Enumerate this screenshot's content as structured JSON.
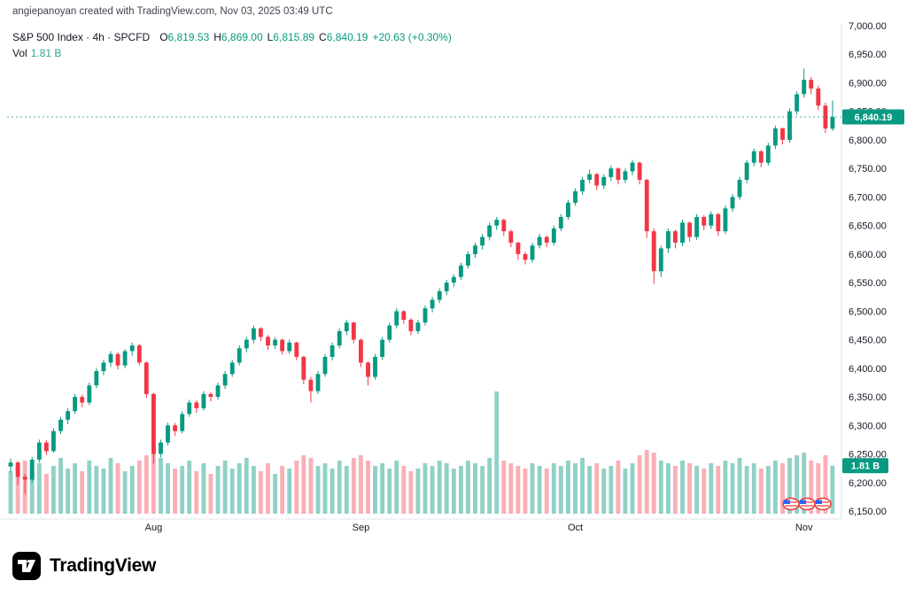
{
  "attribution": "angiepanoyan created with TradingView.com, Nov 03, 2025 03:49 UTC",
  "legend": {
    "title": "S&P 500 Index · 4h · SPCFD",
    "ohlc": [
      {
        "k": "O",
        "v": "6,819.53"
      },
      {
        "k": "H",
        "v": "6,869.00"
      },
      {
        "k": "L",
        "v": "6,815.89"
      },
      {
        "k": "C",
        "v": "6,840.19"
      }
    ],
    "change": "+20.63 (+0.30%)",
    "vol_label": "Vol",
    "vol_value": "1.81 B"
  },
  "colors": {
    "up": "#089981",
    "down": "#f23645",
    "vol_up": "rgba(8,153,129,0.45)",
    "vol_down": "rgba(242,54,69,0.40)",
    "axis_line": "#e0e3eb",
    "label": "#131722"
  },
  "footer": {
    "brand": "TradingView"
  },
  "chart_data": {
    "type": "candlestick",
    "title": "S&P 500 Index",
    "symbol": "SPCFD",
    "interval": "4h",
    "ylabel": "Price",
    "ylim": [
      6150,
      7000
    ],
    "grid": false,
    "legend_position": "top-left",
    "y_ticks": [
      {
        "v": 7000,
        "label": "7,000.00"
      },
      {
        "v": 6950,
        "label": "6,950.00"
      },
      {
        "v": 6900,
        "label": "6,900.00"
      },
      {
        "v": 6850,
        "label": "6,850.00"
      },
      {
        "v": 6800,
        "label": "6,800.00"
      },
      {
        "v": 6750,
        "label": "6,750.00"
      },
      {
        "v": 6700,
        "label": "6,700.00"
      },
      {
        "v": 6650,
        "label": "6,650.00"
      },
      {
        "v": 6600,
        "label": "6,600.00"
      },
      {
        "v": 6550,
        "label": "6,550.00"
      },
      {
        "v": 6500,
        "label": "6,500.00"
      },
      {
        "v": 6450,
        "label": "6,450.00"
      },
      {
        "v": 6400,
        "label": "6,400.00"
      },
      {
        "v": 6350,
        "label": "6,350.00"
      },
      {
        "v": 6300,
        "label": "6,300.00"
      },
      {
        "v": 6250,
        "label": "6,250.00"
      },
      {
        "v": 6200,
        "label": "6,200.00"
      },
      {
        "v": 6150,
        "label": "6,150.00"
      }
    ],
    "months": [
      {
        "label": "Aug",
        "i": 20
      },
      {
        "label": "Sep",
        "i": 49
      },
      {
        "label": "Oct",
        "i": 79
      },
      {
        "label": "Nov",
        "i": 111
      }
    ],
    "candles": [
      [
        6228,
        6242,
        6218,
        6235
      ],
      [
        6235,
        6238,
        6196,
        6210
      ],
      [
        6210,
        6215,
        6180,
        6205
      ],
      [
        6205,
        6245,
        6200,
        6240
      ],
      [
        6240,
        6275,
        6235,
        6270
      ],
      [
        6270,
        6274,
        6248,
        6255
      ],
      [
        6255,
        6295,
        6252,
        6290
      ],
      [
        6290,
        6315,
        6285,
        6310
      ],
      [
        6310,
        6330,
        6302,
        6325
      ],
      [
        6325,
        6355,
        6320,
        6350
      ],
      [
        6350,
        6354,
        6332,
        6340
      ],
      [
        6340,
        6375,
        6336,
        6370
      ],
      [
        6370,
        6400,
        6365,
        6395
      ],
      [
        6395,
        6415,
        6388,
        6410
      ],
      [
        6410,
        6430,
        6402,
        6425
      ],
      [
        6425,
        6428,
        6398,
        6405
      ],
      [
        6405,
        6434,
        6400,
        6430
      ],
      [
        6430,
        6445,
        6422,
        6440
      ],
      [
        6440,
        6443,
        6405,
        6410
      ],
      [
        6410,
        6412,
        6348,
        6355
      ],
      [
        6355,
        6357,
        6233,
        6250
      ],
      [
        6250,
        6275,
        6244,
        6270
      ],
      [
        6270,
        6305,
        6265,
        6300
      ],
      [
        6300,
        6304,
        6282,
        6290
      ],
      [
        6290,
        6325,
        6286,
        6320
      ],
      [
        6320,
        6345,
        6315,
        6340
      ],
      [
        6340,
        6344,
        6322,
        6330
      ],
      [
        6330,
        6360,
        6326,
        6355
      ],
      [
        6355,
        6358,
        6342,
        6350
      ],
      [
        6350,
        6375,
        6345,
        6370
      ],
      [
        6370,
        6395,
        6364,
        6390
      ],
      [
        6390,
        6415,
        6385,
        6410
      ],
      [
        6410,
        6440,
        6405,
        6435
      ],
      [
        6435,
        6455,
        6428,
        6450
      ],
      [
        6450,
        6475,
        6444,
        6470
      ],
      [
        6470,
        6472,
        6448,
        6455
      ],
      [
        6455,
        6458,
        6432,
        6440
      ],
      [
        6440,
        6455,
        6434,
        6450
      ],
      [
        6450,
        6452,
        6424,
        6430
      ],
      [
        6430,
        6450,
        6425,
        6445
      ],
      [
        6445,
        6447,
        6414,
        6420
      ],
      [
        6420,
        6422,
        6372,
        6380
      ],
      [
        6380,
        6385,
        6340,
        6360
      ],
      [
        6360,
        6395,
        6355,
        6390
      ],
      [
        6390,
        6425,
        6385,
        6420
      ],
      [
        6420,
        6445,
        6414,
        6440
      ],
      [
        6440,
        6470,
        6435,
        6465
      ],
      [
        6465,
        6485,
        6458,
        6480
      ],
      [
        6480,
        6482,
        6444,
        6450
      ],
      [
        6450,
        6452,
        6402,
        6410
      ],
      [
        6410,
        6412,
        6370,
        6385
      ],
      [
        6385,
        6425,
        6380,
        6420
      ],
      [
        6420,
        6455,
        6415,
        6450
      ],
      [
        6450,
        6480,
        6445,
        6475
      ],
      [
        6475,
        6505,
        6470,
        6500
      ],
      [
        6500,
        6502,
        6478,
        6485
      ],
      [
        6485,
        6488,
        6458,
        6465
      ],
      [
        6465,
        6485,
        6460,
        6480
      ],
      [
        6480,
        6510,
        6475,
        6505
      ],
      [
        6505,
        6525,
        6498,
        6520
      ],
      [
        6520,
        6540,
        6514,
        6535
      ],
      [
        6535,
        6555,
        6528,
        6550
      ],
      [
        6550,
        6565,
        6542,
        6560
      ],
      [
        6560,
        6585,
        6555,
        6580
      ],
      [
        6580,
        6605,
        6575,
        6600
      ],
      [
        6600,
        6620,
        6594,
        6615
      ],
      [
        6615,
        6635,
        6608,
        6630
      ],
      [
        6630,
        6655,
        6624,
        6650
      ],
      [
        6650,
        6665,
        6642,
        6660
      ],
      [
        6660,
        6662,
        6632,
        6640
      ],
      [
        6640,
        6643,
        6612,
        6620
      ],
      [
        6620,
        6622,
        6590,
        6600
      ],
      [
        6600,
        6604,
        6582,
        6590
      ],
      [
        6590,
        6620,
        6585,
        6615
      ],
      [
        6615,
        6635,
        6610,
        6630
      ],
      [
        6630,
        6633,
        6612,
        6620
      ],
      [
        6620,
        6650,
        6615,
        6645
      ],
      [
        6645,
        6670,
        6640,
        6665
      ],
      [
        6665,
        6695,
        6660,
        6690
      ],
      [
        6690,
        6715,
        6685,
        6710
      ],
      [
        6710,
        6735,
        6704,
        6730
      ],
      [
        6730,
        6748,
        6724,
        6740
      ],
      [
        6740,
        6742,
        6712,
        6720
      ],
      [
        6720,
        6740,
        6714,
        6735
      ],
      [
        6735,
        6755,
        6728,
        6750
      ],
      [
        6750,
        6752,
        6722,
        6730
      ],
      [
        6730,
        6750,
        6724,
        6745
      ],
      [
        6745,
        6765,
        6738,
        6760
      ],
      [
        6760,
        6762,
        6722,
        6730
      ],
      [
        6730,
        6732,
        6628,
        6640
      ],
      [
        6640,
        6645,
        6548,
        6570
      ],
      [
        6570,
        6615,
        6560,
        6610
      ],
      [
        6610,
        6645,
        6602,
        6640
      ],
      [
        6640,
        6643,
        6610,
        6620
      ],
      [
        6620,
        6660,
        6614,
        6655
      ],
      [
        6655,
        6657,
        6622,
        6630
      ],
      [
        6630,
        6670,
        6625,
        6665
      ],
      [
        6665,
        6668,
        6642,
        6650
      ],
      [
        6650,
        6675,
        6644,
        6670
      ],
      [
        6670,
        6672,
        6632,
        6640
      ],
      [
        6640,
        6685,
        6635,
        6680
      ],
      [
        6680,
        6705,
        6674,
        6700
      ],
      [
        6700,
        6735,
        6695,
        6730
      ],
      [
        6730,
        6765,
        6724,
        6760
      ],
      [
        6760,
        6785,
        6754,
        6780
      ],
      [
        6780,
        6782,
        6752,
        6760
      ],
      [
        6760,
        6795,
        6755,
        6790
      ],
      [
        6790,
        6825,
        6784,
        6820
      ],
      [
        6820,
        6822,
        6792,
        6800
      ],
      [
        6800,
        6855,
        6795,
        6850
      ],
      [
        6850,
        6885,
        6844,
        6880
      ],
      [
        6880,
        6925,
        6874,
        6905
      ],
      [
        6905,
        6910,
        6880,
        6890
      ],
      [
        6890,
        6895,
        6852,
        6860
      ],
      [
        6860,
        6865,
        6812,
        6820
      ],
      [
        6819.53,
        6869,
        6815.89,
        6840.19
      ]
    ],
    "volumes_b": [
      1.6,
      1.8,
      2.0,
      1.7,
      1.9,
      1.5,
      1.8,
      2.1,
      1.7,
      1.9,
      1.6,
      2.0,
      1.8,
      1.7,
      2.1,
      1.9,
      1.6,
      1.8,
      2.0,
      2.2,
      2.5,
      2.1,
      1.9,
      1.7,
      1.8,
      2.0,
      1.6,
      1.9,
      1.5,
      1.8,
      2.0,
      1.7,
      1.9,
      2.1,
      1.8,
      1.6,
      1.9,
      1.5,
      1.8,
      1.7,
      2.0,
      2.2,
      2.1,
      1.8,
      1.9,
      1.7,
      2.0,
      1.8,
      2.1,
      2.2,
      2.0,
      1.8,
      1.9,
      1.7,
      2.0,
      1.8,
      1.6,
      1.7,
      1.9,
      1.8,
      2.0,
      1.9,
      1.7,
      1.8,
      2.0,
      1.9,
      1.8,
      2.1,
      4.6,
      2.0,
      1.9,
      1.8,
      1.7,
      1.9,
      1.8,
      1.7,
      1.9,
      1.8,
      2.0,
      1.9,
      2.1,
      1.8,
      1.9,
      1.7,
      1.8,
      2.0,
      1.7,
      1.9,
      2.2,
      2.4,
      2.3,
      2.0,
      1.9,
      1.8,
      2.0,
      1.9,
      1.8,
      1.7,
      1.9,
      1.8,
      2.0,
      1.9,
      2.1,
      1.8,
      1.9,
      1.7,
      1.8,
      2.0,
      1.9,
      2.1,
      2.2,
      2.3,
      2.0,
      1.9,
      2.2,
      1.81
    ],
    "price_line": {
      "value": 6840.19,
      "label": "6,840.19"
    },
    "volume_badge": "1.81 B"
  }
}
